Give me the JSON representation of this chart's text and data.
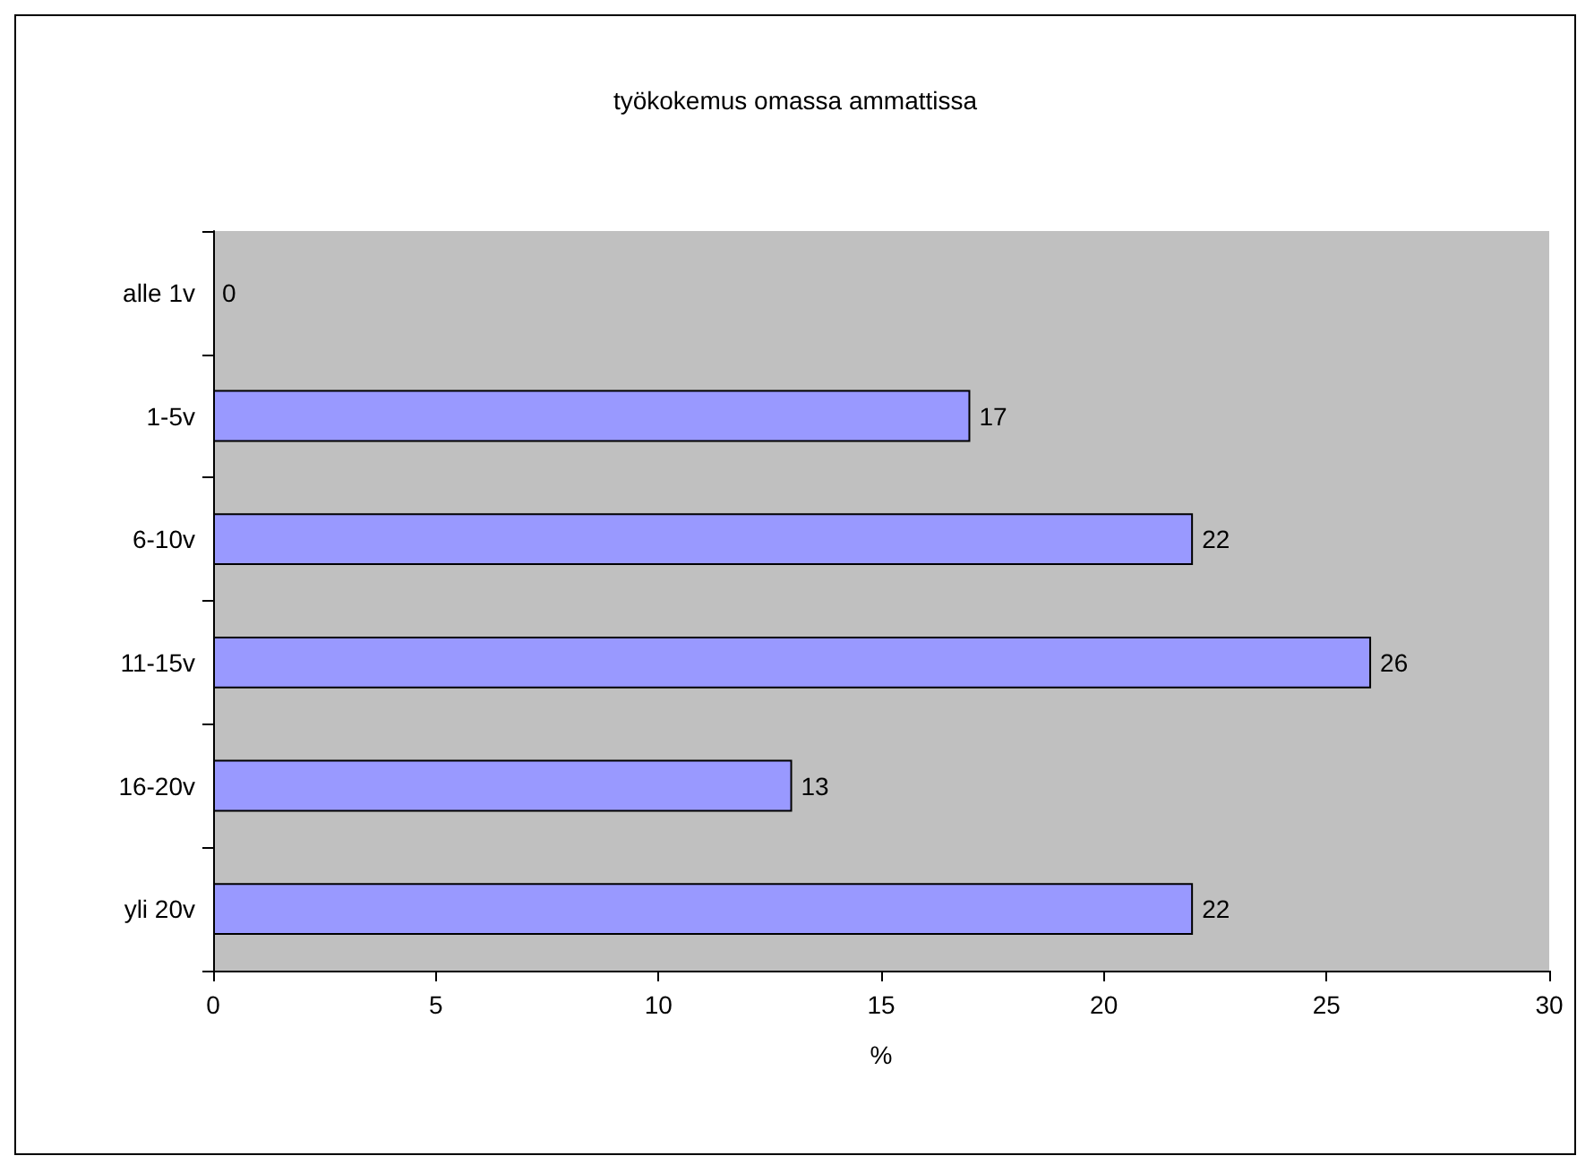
{
  "chart_data": {
    "type": "bar",
    "orientation": "horizontal",
    "title": "työkokemus omassa ammattissa",
    "xlabel": "%",
    "categories": [
      "alle 1v",
      "1-5v",
      "6-10v",
      "11-15v",
      "16-20v",
      "yli 20v"
    ],
    "values": [
      0,
      17,
      22,
      26,
      13,
      22
    ],
    "color": "#9999ff",
    "data_labels": true,
    "xlim": [
      0,
      30
    ],
    "xticks": [
      0,
      5,
      10,
      15,
      20,
      25,
      30
    ],
    "grid": false
  }
}
